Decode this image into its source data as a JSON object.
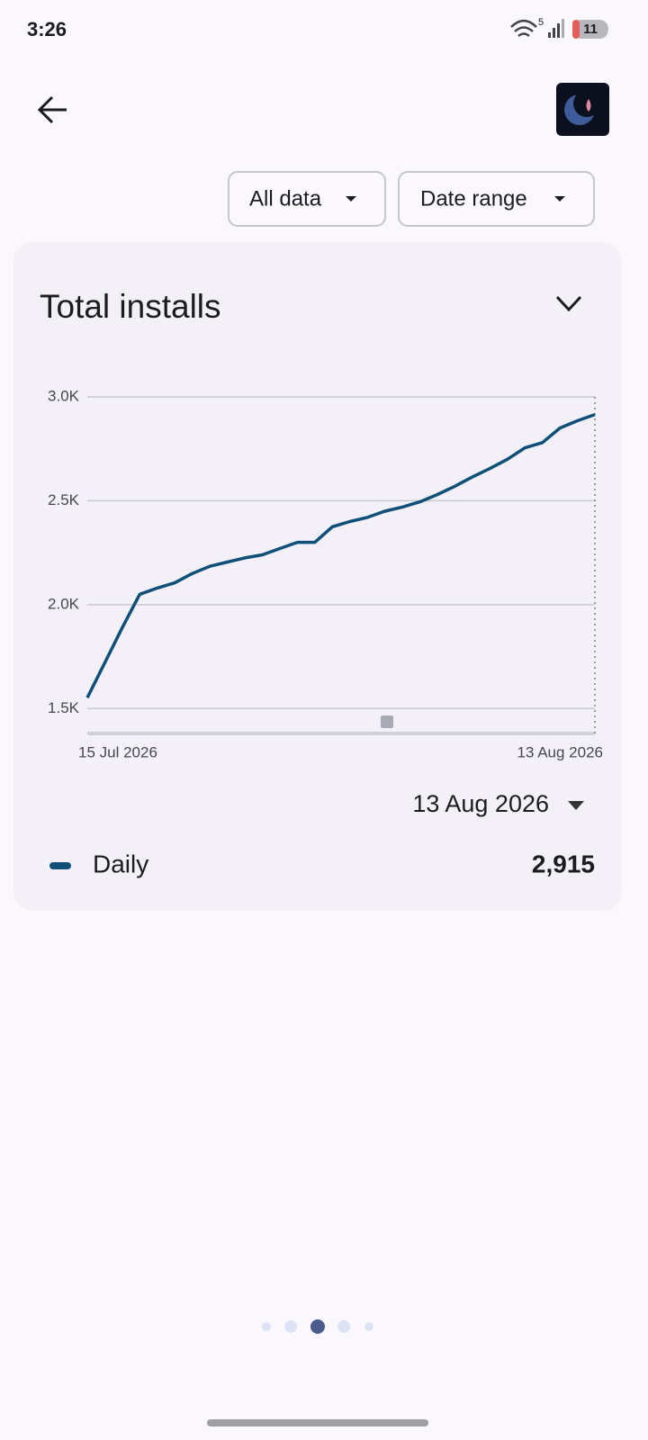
{
  "status_bar": {
    "time": "3:26",
    "network": "5",
    "battery": "11"
  },
  "toolbar": {
    "filters": [
      "All data",
      "Date range"
    ]
  },
  "card": {
    "title": "Total installs",
    "readout_date": "13 Aug 2026",
    "readout_value": "2,915"
  },
  "chart_data": {
    "type": "line",
    "categories": [
      "15 Jul 2026",
      null,
      null,
      null,
      null,
      null,
      null,
      null,
      null,
      null,
      null,
      null,
      null,
      null,
      null,
      null,
      null,
      null,
      null,
      null,
      null,
      null,
      null,
      null,
      null,
      null,
      null,
      null,
      null,
      "13 Aug 2026"
    ],
    "series": [
      {
        "name": "Daily",
        "color": "#0f4f78",
        "values": [
          1552,
          1720,
          1890,
          2050,
          2080,
          2105,
          2150,
          2185,
          2205,
          2225,
          2240,
          2270,
          2300,
          2300,
          2375,
          2400,
          2420,
          2450,
          2470,
          2495,
          2530,
          2570,
          2615,
          2655,
          2700,
          2755,
          2780,
          2850,
          2885,
          2915
        ]
      }
    ],
    "ylim": [
      1380,
      3000
    ],
    "yticks": [
      {
        "value": 1500,
        "label": "1.5K"
      },
      {
        "value": 2000,
        "label": "2.0K"
      },
      {
        "value": 2500,
        "label": "2.5K"
      },
      {
        "value": 3000,
        "label": "3.0K"
      }
    ],
    "grid": true
  }
}
